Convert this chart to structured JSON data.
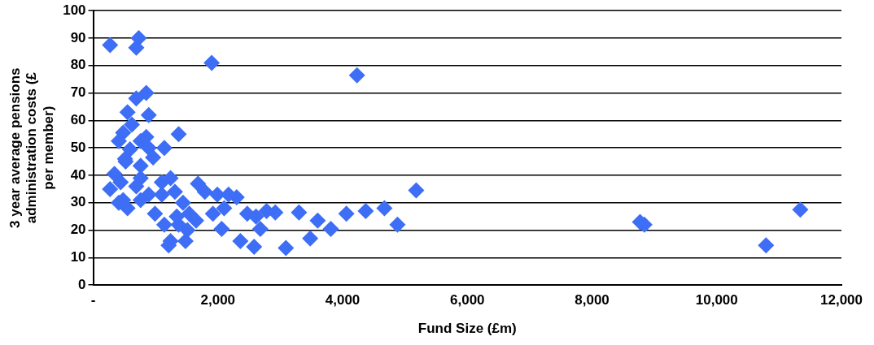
{
  "chart_data": {
    "type": "scatter",
    "xlabel": "Fund Size (£m)",
    "ylabel": "3 year average pensions administration costs (£ per member)",
    "xlim": [
      0,
      12000
    ],
    "xticks": [
      {
        "value": 0,
        "label": "-"
      },
      {
        "value": 2000,
        "label": "2,000"
      },
      {
        "value": 4000,
        "label": "4,000"
      },
      {
        "value": 6000,
        "label": "6,000"
      },
      {
        "value": 8000,
        "label": "8,000"
      },
      {
        "value": 10000,
        "label": "10,000"
      },
      {
        "value": 12000,
        "label": "12,000"
      }
    ],
    "ylim": [
      0,
      100
    ],
    "yticks": [
      0,
      10,
      20,
      30,
      40,
      50,
      60,
      70,
      80,
      90,
      100
    ],
    "grid": "y",
    "marker": "diamond",
    "legend": false,
    "series": [
      {
        "color": "#3d6ef5",
        "x": [
          270,
          730,
          690,
          1900,
          4230,
          850,
          690,
          890,
          1370,
          1140,
          5180,
          4670,
          4370,
          4060,
          4880,
          3810,
          3600,
          3480,
          3300,
          3090,
          2920,
          2780,
          2680,
          2580,
          2610,
          2470,
          2360,
          2300,
          2170,
          1990,
          2100,
          2060,
          1920,
          1680,
          1790,
          1650,
          1510,
          1370,
          1310,
          1440,
          1240,
          1210,
          1140,
          1240,
          1100,
          990,
          890,
          760,
          960,
          760,
          590,
          850,
          480,
          550,
          620,
          410,
          520,
          340,
          270,
          480,
          410,
          550,
          690,
          760,
          440,
          510,
          760,
          890,
          1100,
          1340,
          1540,
          1480,
          8770,
          8840,
          10790,
          11340
        ],
        "values": [
          87.5,
          90,
          86.5,
          81,
          76.5,
          70,
          68,
          62,
          55,
          50,
          34.5,
          28,
          27,
          26,
          22,
          20.5,
          23.5,
          17,
          26.5,
          13.5,
          26.5,
          27,
          20.5,
          14,
          25,
          26,
          16,
          32,
          33,
          33,
          28,
          20.5,
          26,
          37,
          34,
          23.5,
          20,
          22,
          34,
          30,
          16,
          14.5,
          22,
          39,
          37.5,
          26,
          33,
          39,
          46.5,
          43.5,
          49.5,
          54,
          55.5,
          63,
          58.5,
          52.5,
          45,
          40.5,
          35,
          31,
          30,
          28,
          36,
          31,
          37.5,
          46,
          52.5,
          50,
          33,
          25,
          26,
          16,
          23,
          22,
          14.5,
          27.5
        ]
      }
    ]
  }
}
